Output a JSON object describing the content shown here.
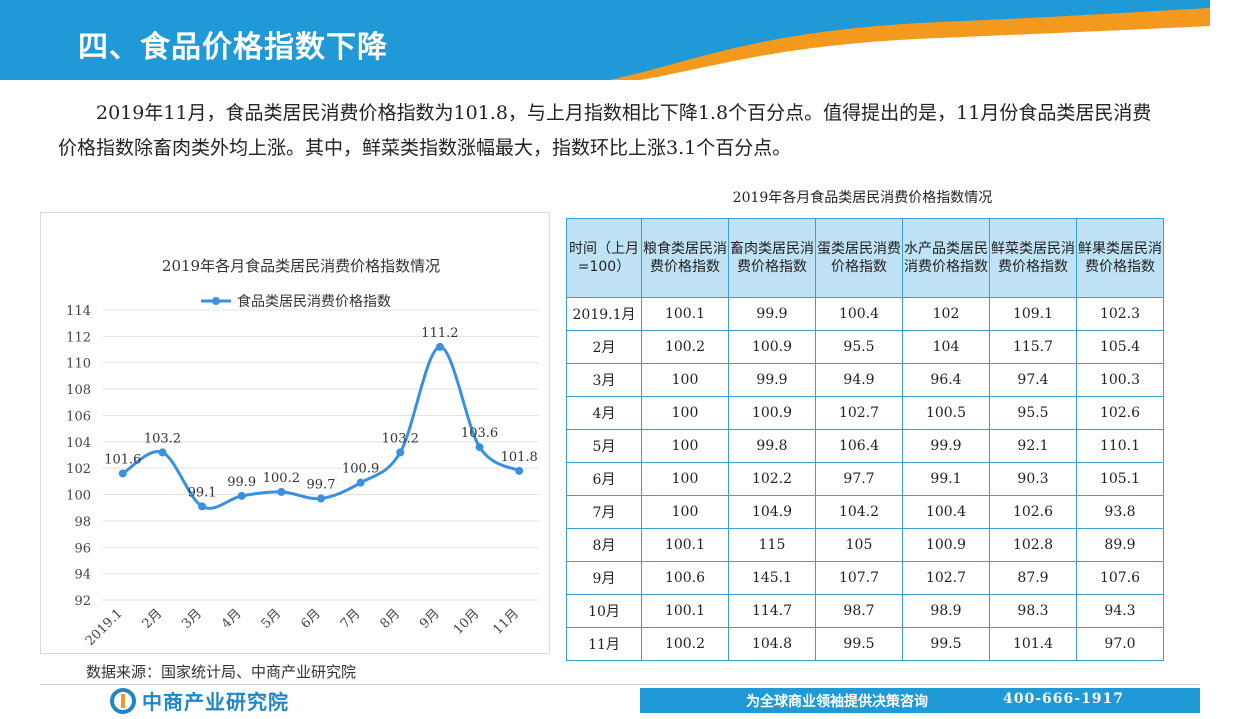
{
  "header": {
    "title": "四、食品价格指数下降"
  },
  "paragraph": [
    "2019年11月，食品类居民消费价格指数为101.8，与上月指数相比下降1.8个百分点。值得提出的是，11月份食品类居民消费价格指数除畜肉类外均上涨。其中，鲜菜类指数涨幅最大，指数环比上涨3.1个百分点。"
  ],
  "chart_data": {
    "type": "line",
    "title": "2019年各月食品类居民消费价格指数情况",
    "categories": [
      "2019.1",
      "2月",
      "3月",
      "4月",
      "5月",
      "6月",
      "7月",
      "8月",
      "9月",
      "10月",
      "11月"
    ],
    "series": [
      {
        "name": "食品类居民消费价格指数",
        "values": [
          101.6,
          103.2,
          99.1,
          99.9,
          100.2,
          99.7,
          100.9,
          103.2,
          111.2,
          103.6,
          101.8
        ]
      }
    ],
    "ylim": [
      92,
      114
    ],
    "yticks": [
      "92",
      "94",
      "96",
      "98",
      "100",
      "102",
      "104",
      "106",
      "108",
      "110",
      "112",
      "114"
    ],
    "data_labels": [
      "101.6",
      "103.2",
      "99.1",
      "99.9",
      "100.2",
      "99.7",
      "100.9",
      "103.2",
      "111.2",
      "103.6",
      "101.8"
    ],
    "legend_position": "top",
    "grid": true,
    "line_color": "#3b8fe0"
  },
  "table": {
    "title": "2019年各月食品类居民消费价格指数情况",
    "headers": [
      "时间（上月=100）",
      "粮食类居民消费价格指数",
      "畜肉类居民消费价格指数",
      "蛋类居民消费价格指数",
      "水产品类居民消费价格指数",
      "鲜菜类居民消费价格指数",
      "鲜果类居民消费价格指数"
    ],
    "rows": [
      [
        "2019.1月",
        "100.1",
        "99.9",
        "100.4",
        "102",
        "109.1",
        "102.3"
      ],
      [
        "2月",
        "100.2",
        "100.9",
        "95.5",
        "104",
        "115.7",
        "105.4"
      ],
      [
        "3月",
        "100",
        "99.9",
        "94.9",
        "96.4",
        "97.4",
        "100.3"
      ],
      [
        "4月",
        "100",
        "100.9",
        "102.7",
        "100.5",
        "95.5",
        "102.6"
      ],
      [
        "5月",
        "100",
        "99.8",
        "106.4",
        "99.9",
        "92.1",
        "110.1"
      ],
      [
        "6月",
        "100",
        "102.2",
        "97.7",
        "99.1",
        "90.3",
        "105.1"
      ],
      [
        "7月",
        "100",
        "104.9",
        "104.2",
        "100.4",
        "102.6",
        "93.8"
      ],
      [
        "8月",
        "100.1",
        "115",
        "105",
        "100.9",
        "102.8",
        "89.9"
      ],
      [
        "9月",
        "100.6",
        "145.1",
        "107.7",
        "102.7",
        "87.9",
        "107.6"
      ],
      [
        "10月",
        "100.1",
        "114.7",
        "98.7",
        "98.9",
        "98.3",
        "94.3"
      ],
      [
        "11月",
        "100.2",
        "104.8",
        "99.5",
        "99.5",
        "101.4",
        "97.0"
      ]
    ]
  },
  "source": "数据来源：国家统计局、中商产业研究院",
  "footer": {
    "logo_text": "中商产业研究院",
    "slogan": "为全球商业领袖提供决策咨询",
    "phone": "400-666-1917"
  },
  "colors": {
    "brand_blue": "#1f9ad6",
    "accent_orange": "#f39a1e",
    "table_header_bg": "#bfe3f4"
  }
}
